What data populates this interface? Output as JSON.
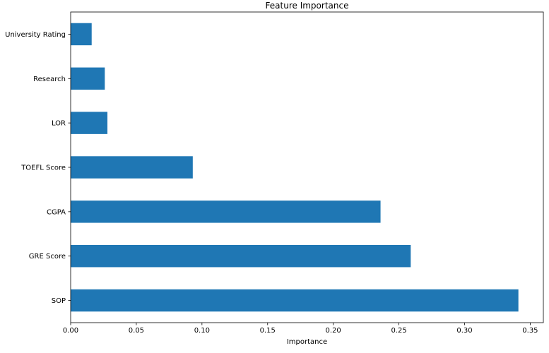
{
  "chart_data": {
    "type": "bar",
    "orientation": "horizontal",
    "title": "Feature Importance",
    "xlabel": "Importance",
    "ylabel": "",
    "categories": [
      "SOP",
      "GRE Score",
      "CGPA",
      "TOEFL Score",
      "LOR",
      "Research",
      "University Rating"
    ],
    "values": [
      0.341,
      0.259,
      0.236,
      0.093,
      0.028,
      0.026,
      0.016
    ],
    "xlim": [
      0,
      0.36
    ],
    "xticks": [
      0.0,
      0.05,
      0.1,
      0.15,
      0.2,
      0.25,
      0.3,
      0.35
    ],
    "xtick_labels": [
      "0.00",
      "0.05",
      "0.10",
      "0.15",
      "0.20",
      "0.25",
      "0.30",
      "0.35"
    ],
    "grid": false,
    "legend": "none",
    "colors": {
      "bar": "#1f77b4",
      "axis": "#000000",
      "background": "#ffffff"
    }
  }
}
